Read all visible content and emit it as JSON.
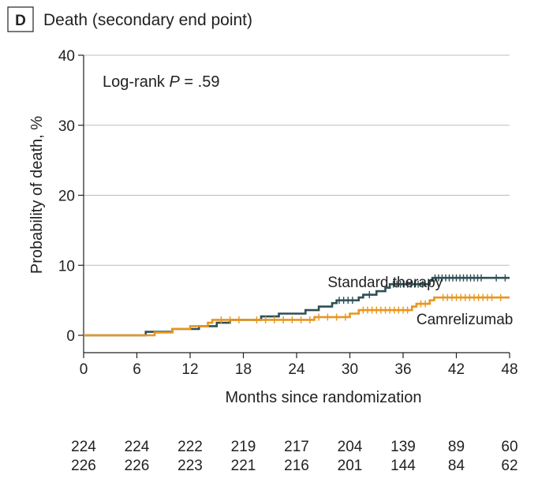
{
  "panel": {
    "letter": "D",
    "title": "Death (secondary end point)"
  },
  "annotation": {
    "prefix": "Log-rank ",
    "italic": "P",
    "suffix": " = .59"
  },
  "chart_data": {
    "type": "line",
    "title": "Death (secondary end point)",
    "xlabel": "Months since randomization",
    "ylabel": "Probability of death, %",
    "xlim": [
      0,
      48
    ],
    "ylim": [
      0,
      40
    ],
    "xticks": [
      0,
      6,
      12,
      18,
      24,
      30,
      36,
      42,
      48
    ],
    "yticks": [
      0,
      10,
      20,
      30,
      40
    ],
    "grid": "horizontal",
    "step": true,
    "series": [
      {
        "name": "Standard therapy",
        "color": "#2f4f57",
        "points": [
          [
            0,
            0
          ],
          [
            7,
            0
          ],
          [
            7,
            0.5
          ],
          [
            10,
            0.5
          ],
          [
            10,
            0.9
          ],
          [
            13,
            0.9
          ],
          [
            13,
            1.3
          ],
          [
            15,
            1.3
          ],
          [
            15,
            1.8
          ],
          [
            16.5,
            1.8
          ],
          [
            16.5,
            2.2
          ],
          [
            20,
            2.2
          ],
          [
            20,
            2.7
          ],
          [
            22,
            2.7
          ],
          [
            22,
            3.1
          ],
          [
            25,
            3.1
          ],
          [
            25,
            3.6
          ],
          [
            26.5,
            3.6
          ],
          [
            26.5,
            4.1
          ],
          [
            28,
            4.1
          ],
          [
            28,
            4.6
          ],
          [
            28.5,
            4.6
          ],
          [
            28.5,
            5.0
          ],
          [
            31,
            5.0
          ],
          [
            31,
            5.4
          ],
          [
            31.5,
            5.4
          ],
          [
            31.5,
            5.8
          ],
          [
            33,
            5.8
          ],
          [
            33,
            6.3
          ],
          [
            34,
            6.3
          ],
          [
            34,
            6.8
          ],
          [
            34.5,
            6.8
          ],
          [
            34.5,
            7.3
          ],
          [
            39,
            7.3
          ],
          [
            39,
            7.8
          ],
          [
            39.3,
            7.8
          ],
          [
            39.3,
            8.2
          ],
          [
            48,
            8.2
          ]
        ],
        "censor_x": [
          28.8,
          29.3,
          29.8,
          30.3,
          32.2,
          34.9,
          35.3,
          35.7,
          36.1,
          36.5,
          36.9,
          37.3,
          37.7,
          38.2,
          39.6,
          40.0,
          40.4,
          40.8,
          41.2,
          41.6,
          42.0,
          42.4,
          42.8,
          43.2,
          43.6,
          44.0,
          44.4,
          44.8,
          46.5,
          47.5
        ]
      },
      {
        "name": "Camrelizumab",
        "color": "#e8961e",
        "points": [
          [
            0,
            0
          ],
          [
            8,
            0
          ],
          [
            8,
            0.4
          ],
          [
            10,
            0.4
          ],
          [
            10,
            0.9
          ],
          [
            12,
            0.9
          ],
          [
            12,
            1.3
          ],
          [
            14,
            1.3
          ],
          [
            14,
            1.8
          ],
          [
            14.5,
            1.8
          ],
          [
            14.5,
            2.2
          ],
          [
            26,
            2.2
          ],
          [
            26,
            2.6
          ],
          [
            30,
            2.6
          ],
          [
            30,
            3.1
          ],
          [
            31,
            3.1
          ],
          [
            31,
            3.6
          ],
          [
            37,
            3.6
          ],
          [
            37,
            4.1
          ],
          [
            37.5,
            4.1
          ],
          [
            37.5,
            4.5
          ],
          [
            39,
            4.5
          ],
          [
            39,
            5.0
          ],
          [
            39.5,
            5.0
          ],
          [
            39.5,
            5.4
          ],
          [
            48,
            5.4
          ]
        ],
        "censor_x": [
          15.5,
          16.5,
          17.5,
          19.5,
          20.5,
          21.5,
          22.5,
          23.5,
          24.5,
          25.5,
          26.5,
          27.5,
          28.5,
          29.5,
          31.5,
          32.0,
          32.5,
          33.0,
          33.5,
          34.0,
          34.5,
          35.0,
          35.5,
          36.0,
          36.5,
          38.0,
          38.5,
          40.5,
          41.0,
          41.5,
          42.0,
          42.5,
          43.0,
          43.5,
          44.0,
          44.5,
          45.0,
          45.5,
          46.0,
          47.0
        ]
      }
    ],
    "series_labels": [
      {
        "text": "Standard therapy",
        "x": 27.5,
        "y": 6.9
      },
      {
        "text": "Camrelizumab",
        "x": 37.5,
        "y": 1.6
      }
    ]
  },
  "risk_table": {
    "x": [
      0,
      6,
      12,
      18,
      24,
      30,
      36,
      42,
      48
    ],
    "rows": [
      [
        "224",
        "224",
        "222",
        "219",
        "217",
        "204",
        "139",
        "89",
        "60"
      ],
      [
        "226",
        "226",
        "223",
        "221",
        "216",
        "201",
        "144",
        "84",
        "62"
      ]
    ]
  }
}
